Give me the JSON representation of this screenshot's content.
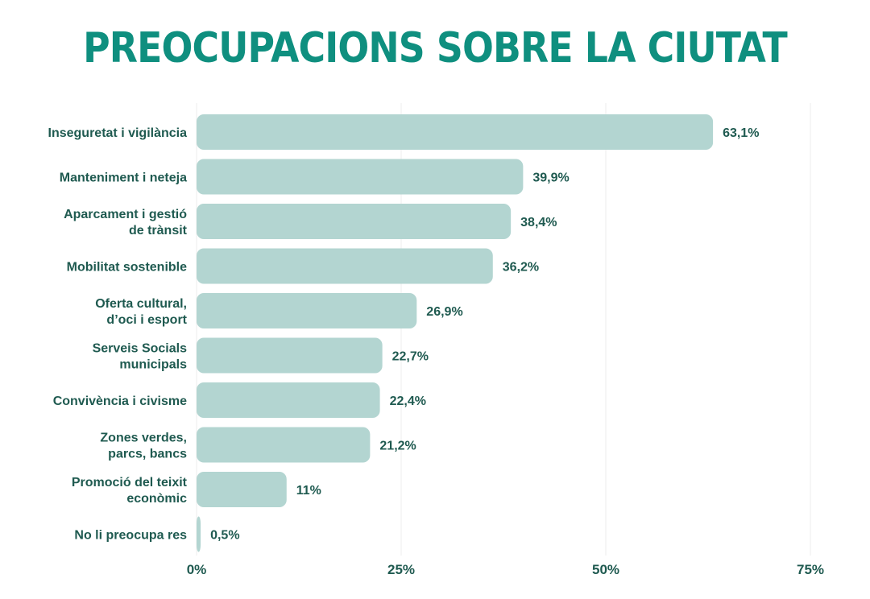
{
  "chart_data": {
    "type": "bar",
    "orientation": "horizontal",
    "title": "PREOCUPACIONS SOBRE LA CIUTAT",
    "categories": [
      [
        "Inseguretat i vigilància"
      ],
      [
        "Manteniment i neteja"
      ],
      [
        "Aparcament i gestió",
        "de trànsit"
      ],
      [
        "Mobilitat sostenible"
      ],
      [
        "Oferta cultural,",
        "d’oci i esport"
      ],
      [
        "Serveis Socials",
        "municipals"
      ],
      [
        "Convivència i civisme"
      ],
      [
        "Zones verdes,",
        "parcs, bancs"
      ],
      [
        "Promoció del teixit",
        "econòmic"
      ],
      [
        "No li preocupa res"
      ]
    ],
    "values": [
      63.1,
      39.9,
      38.4,
      36.2,
      26.9,
      22.7,
      22.4,
      21.2,
      11,
      0.5
    ],
    "value_labels": [
      "63,1%",
      "39,9%",
      "38,4%",
      "36,2%",
      "26,9%",
      "22,7%",
      "22,4%",
      "21,2%",
      "11%",
      "0,5%"
    ],
    "xlim": [
      0,
      75
    ],
    "x_ticks": [
      0,
      25,
      50,
      75
    ],
    "x_tick_labels": [
      "0%",
      "25%",
      "50%",
      "75%"
    ],
    "grid": "vertical",
    "colors": {
      "title": "#0f8f7f",
      "bar": "#b3d5d1",
      "text": "#1f5a50",
      "grid": "#ececec"
    }
  }
}
